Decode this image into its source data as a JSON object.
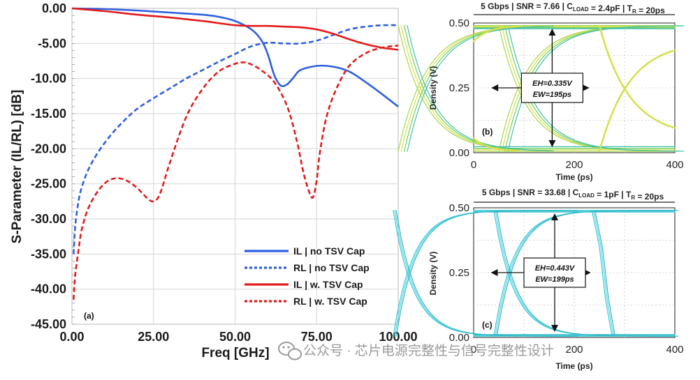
{
  "chart_data": [
    {
      "type": "line",
      "panel_label": "(a)",
      "xlabel": "Freq [GHz]",
      "ylabel": "S-Parameter (IL/RL) [dB]",
      "xlim": [
        0,
        100
      ],
      "ylim": [
        -45,
        0
      ],
      "xticks": [
        "0.00",
        "25.00",
        "50.00",
        "75.00",
        "100.00"
      ],
      "yticks": [
        "0.00",
        "-5.00",
        "-10.00",
        "-15.00",
        "-20.00",
        "-25.00",
        "-30.00",
        "-35.00",
        "-40.00",
        "-45.00"
      ],
      "series": [
        {
          "name": "IL | no TSV Cap",
          "color": "#2f5fe0",
          "dash": "solid",
          "x": [
            0,
            10,
            20,
            30,
            40,
            45,
            50,
            55,
            58,
            60,
            62,
            64,
            66,
            68,
            70,
            75,
            80,
            85,
            90,
            95,
            100
          ],
          "y": [
            0,
            -0.1,
            -0.3,
            -0.6,
            -0.9,
            -1.2,
            -1.8,
            -3.0,
            -4.5,
            -6.5,
            -9.5,
            -11.0,
            -10.8,
            -9.8,
            -8.8,
            -8.2,
            -8.3,
            -9.0,
            -10.5,
            -12.2,
            -14.0
          ]
        },
        {
          "name": "RL | no TSV Cap",
          "color": "#2f5fe0",
          "dash": "dashed",
          "x": [
            0.5,
            1,
            2,
            3,
            5,
            8,
            12,
            16,
            20,
            25,
            30,
            35,
            40,
            45,
            50,
            55,
            60,
            65,
            70,
            75,
            80,
            85,
            90,
            95,
            100
          ],
          "y": [
            -35.0,
            -31.0,
            -27.5,
            -25.5,
            -23.0,
            -20.5,
            -18.0,
            -16.0,
            -14.3,
            -12.8,
            -11.4,
            -10.0,
            -8.8,
            -7.6,
            -6.5,
            -5.4,
            -4.9,
            -5.0,
            -5.0,
            -4.6,
            -3.8,
            -3.0,
            -2.6,
            -2.4,
            -2.4
          ]
        },
        {
          "name": "IL | w. TSV Cap",
          "color": "#e41a1a",
          "dash": "solid",
          "x": [
            0,
            10,
            20,
            25,
            30,
            40,
            50,
            55,
            60,
            65,
            70,
            75,
            80,
            85,
            90,
            95,
            100
          ],
          "y": [
            0,
            -0.4,
            -0.9,
            -1.1,
            -1.3,
            -1.8,
            -2.4,
            -2.5,
            -2.5,
            -2.6,
            -2.7,
            -3.0,
            -3.6,
            -4.4,
            -5.1,
            -5.6,
            -5.9
          ]
        },
        {
          "name": "RL | w. TSV Cap",
          "color": "#e41a1a",
          "dash": "dashed",
          "x": [
            0.5,
            1,
            2,
            3,
            5,
            8,
            11,
            14,
            17,
            20,
            23,
            25,
            27,
            30,
            35,
            40,
            45,
            50,
            53,
            55,
            58,
            62,
            66,
            69,
            71,
            73,
            74,
            75,
            76,
            78,
            81,
            85,
            90,
            95,
            100
          ],
          "y": [
            -41.5,
            -38.0,
            -34.5,
            -31.5,
            -28.5,
            -26.0,
            -24.6,
            -24.2,
            -24.6,
            -25.6,
            -27.0,
            -27.5,
            -26.4,
            -22.0,
            -15.5,
            -11.5,
            -9.0,
            -7.9,
            -7.7,
            -8.0,
            -8.8,
            -10.5,
            -14.0,
            -19.0,
            -23.5,
            -26.5,
            -26.8,
            -24.5,
            -20.5,
            -15.5,
            -11.5,
            -8.2,
            -6.4,
            -5.6,
            -5.3
          ]
        }
      ],
      "legend_position": "bottom-right"
    },
    {
      "type": "line",
      "panel_label": "(b)",
      "title": "5 Gbps | SNR = 7.66 | C_LOAD = 2.4pF | T_R = 20ps",
      "xlabel": "Time (ps)",
      "ylabel": "Density (V)",
      "xlim": [
        0,
        400
      ],
      "ylim": [
        0,
        0.5
      ],
      "xticks": [
        "0",
        "200",
        "400"
      ],
      "yticks": [
        "0.50",
        "0.25",
        "0.00"
      ],
      "annotation": [
        "EH=0.335V",
        "EW=195ps"
      ],
      "colors": [
        "#a6d64a",
        "#d4e04a",
        "#6fcf5a",
        "#3fbfb0"
      ]
    },
    {
      "type": "line",
      "panel_label": "(c)",
      "title": "5 Gbps | SNR = 33.68 | C_LOAD = 1pF | T_R = 20ps",
      "xlabel": "Time (ps)",
      "ylabel": "Density (V)",
      "xlim": [
        0,
        400
      ],
      "ylim": [
        0,
        0.5
      ],
      "xticks": [
        "0",
        "200",
        "400"
      ],
      "yticks": [
        "0.50",
        "0.25",
        "0.00"
      ],
      "annotation": [
        "EH=0.443V",
        "EW=199ps"
      ],
      "colors": [
        "#36c8d8",
        "#58d4e0",
        "#2bb6c8"
      ]
    }
  ],
  "watermark": "公众号 · 芯片电源完整性与信号完整性设计"
}
